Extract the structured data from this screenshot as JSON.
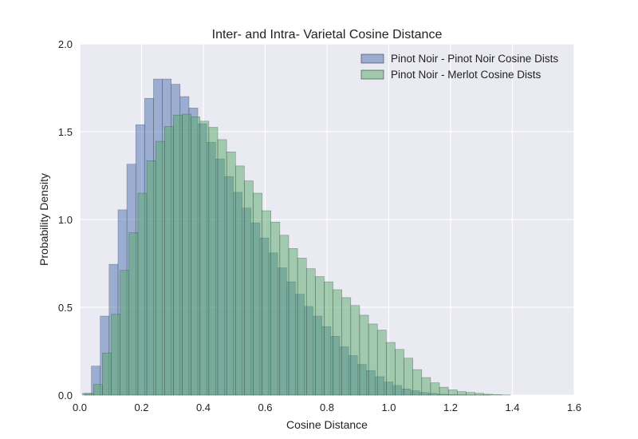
{
  "chart_data": {
    "type": "bar",
    "title": "Inter- and Intra- Varietal Cosine Distance",
    "xlabel": "Cosine Distance",
    "ylabel": "Probability Density",
    "xlim": [
      0.0,
      1.6
    ],
    "ylim": [
      0.0,
      2.0
    ],
    "xticks": [
      "0.0",
      "0.2",
      "0.4",
      "0.6",
      "0.8",
      "1.0",
      "1.2",
      "1.4",
      "1.6"
    ],
    "yticks": [
      "0.0",
      "0.5",
      "1.0",
      "1.5",
      "2.0"
    ],
    "grid": true,
    "legend_position": "top-right",
    "series": [
      {
        "name": "Pinot Noir - Pinot Noir Cosine Dists",
        "color": "#4c72b0",
        "bin_start": 0.009,
        "bin_width": 0.0287,
        "values": [
          0.01,
          0.165,
          0.45,
          0.745,
          1.055,
          1.315,
          1.54,
          1.69,
          1.8,
          1.8,
          1.77,
          1.7,
          1.635,
          1.545,
          1.44,
          1.345,
          1.245,
          1.155,
          1.065,
          0.98,
          0.895,
          0.81,
          0.725,
          0.645,
          0.575,
          0.505,
          0.45,
          0.39,
          0.335,
          0.275,
          0.225,
          0.175,
          0.14,
          0.105,
          0.075,
          0.055,
          0.035,
          0.025,
          0.015,
          0.01,
          0.005,
          0.003,
          0.002,
          0.001,
          0.001,
          0.001,
          0.0,
          0.0,
          0.0,
          0.0
        ]
      },
      {
        "name": "Pinot Noir - Merlot Cosine Dists",
        "color": "#55a868",
        "bin_start": 0.016,
        "bin_width": 0.0287,
        "values": [
          0.01,
          0.06,
          0.24,
          0.46,
          0.71,
          0.925,
          1.15,
          1.335,
          1.445,
          1.53,
          1.595,
          1.6,
          1.585,
          1.56,
          1.525,
          1.455,
          1.385,
          1.305,
          1.22,
          1.15,
          1.05,
          0.985,
          0.91,
          0.835,
          0.78,
          0.72,
          0.675,
          0.645,
          0.6,
          0.555,
          0.51,
          0.455,
          0.405,
          0.37,
          0.3,
          0.26,
          0.21,
          0.145,
          0.1,
          0.07,
          0.045,
          0.03,
          0.02,
          0.015,
          0.01,
          0.005,
          0.003,
          0.001
        ]
      }
    ]
  }
}
